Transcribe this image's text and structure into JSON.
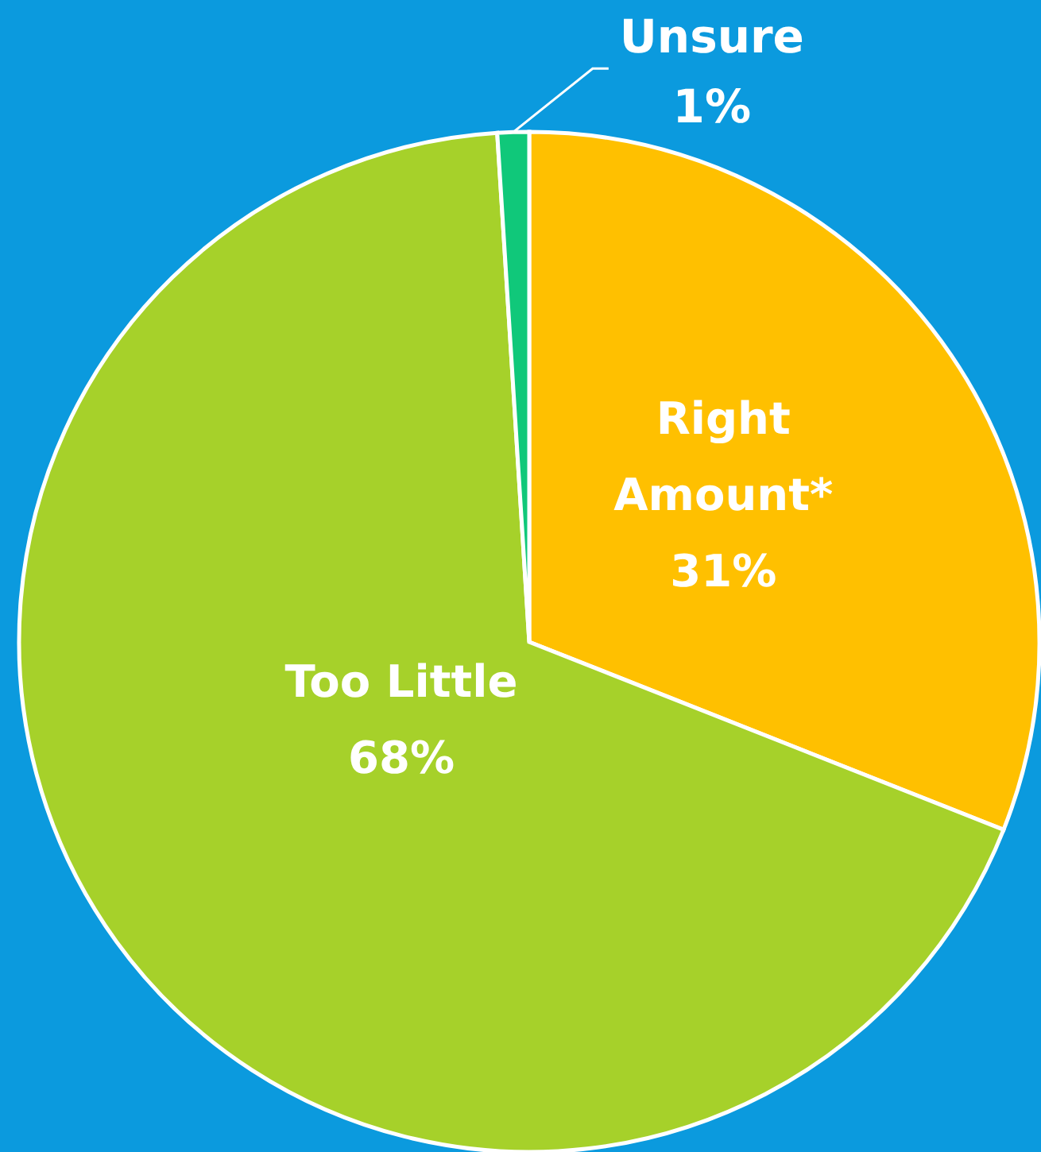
{
  "chart_data": {
    "type": "pie",
    "categories": [
      "Right Amount*",
      "Too Little",
      "Unsure"
    ],
    "values": [
      31,
      68,
      1
    ],
    "colors": [
      "#ffc000",
      "#a6d12a",
      "#10c87a"
    ],
    "value_labels": [
      "31%",
      "68%",
      "1%"
    ]
  }
}
